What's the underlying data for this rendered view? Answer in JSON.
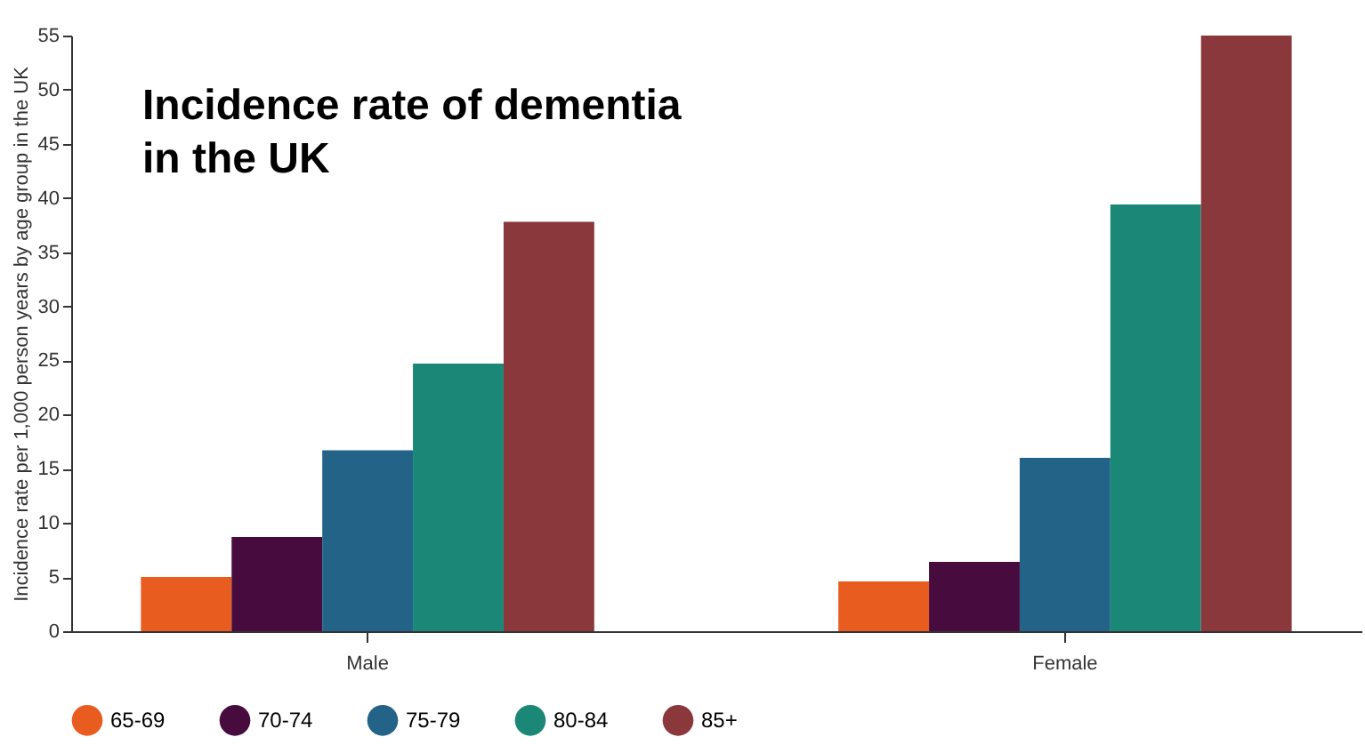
{
  "chart_data": {
    "type": "bar",
    "title": "Incidence rate of dementia in the UK",
    "ylabel": "Incidence rate per 1,000 person years by age group in the UK",
    "categories": [
      "Male",
      "Female"
    ],
    "series": [
      {
        "name": "65-69",
        "color": "#e95c20",
        "values": [
          5.0,
          4.6
        ]
      },
      {
        "name": "70-74",
        "color": "#470b3e",
        "values": [
          8.7,
          6.4
        ]
      },
      {
        "name": "75-79",
        "color": "#246388",
        "values": [
          16.7,
          16.0
        ]
      },
      {
        "name": "80-84",
        "color": "#1a8777",
        "values": [
          24.7,
          39.4
        ]
      },
      {
        "name": "85+",
        "color": "#8b383d",
        "values": [
          37.8,
          55
        ]
      }
    ],
    "ylim": [
      0,
      55
    ],
    "yticks": [
      0,
      5,
      10,
      15,
      20,
      25,
      30,
      35,
      40,
      45,
      50,
      55
    ],
    "grid": false,
    "legend": "bottom"
  }
}
